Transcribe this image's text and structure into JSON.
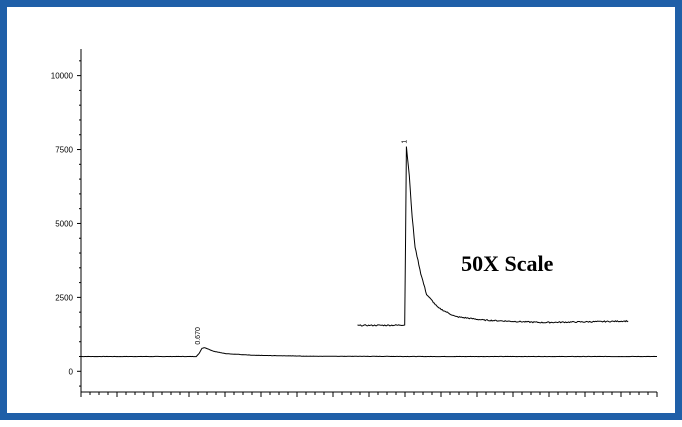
{
  "chart_data": {
    "type": "line",
    "title": "",
    "xlabel": "",
    "ylabel": "",
    "ylim": [
      -700,
      10900
    ],
    "xlim": [
      0,
      1000
    ],
    "yticks": [
      0,
      2500,
      5000,
      7500,
      10000
    ],
    "ytick_labels": [
      "0",
      "2500",
      "5000",
      "7500",
      "10000"
    ],
    "grid": false,
    "legend": "none",
    "line_color": "#000000",
    "frame_color": "#1f5fa8",
    "series": [
      {
        "x": [
          0,
          200,
          205,
          210,
          215,
          220,
          230,
          250,
          300,
          400,
          600,
          1000
        ],
        "y": [
          500,
          500,
          600,
          780,
          800,
          760,
          680,
          600,
          540,
          510,
          500,
          500
        ]
      },
      {
        "x": [
          480,
          550,
          562,
          565,
          570,
          575,
          580,
          590,
          600,
          620,
          650,
          700,
          800,
          900,
          950
        ],
        "y": [
          1550,
          1560,
          1570,
          7600,
          6600,
          5200,
          4200,
          3300,
          2600,
          2150,
          1850,
          1730,
          1650,
          1680,
          1700
        ]
      }
    ],
    "peak_labels": [
      {
        "text": "0.670",
        "x": 207,
        "y": 800
      },
      {
        "text": "1",
        "x": 565,
        "y": 7600
      }
    ],
    "annotations": [
      {
        "text": "50X Scale",
        "x": 740,
        "y": 3400
      }
    ]
  }
}
